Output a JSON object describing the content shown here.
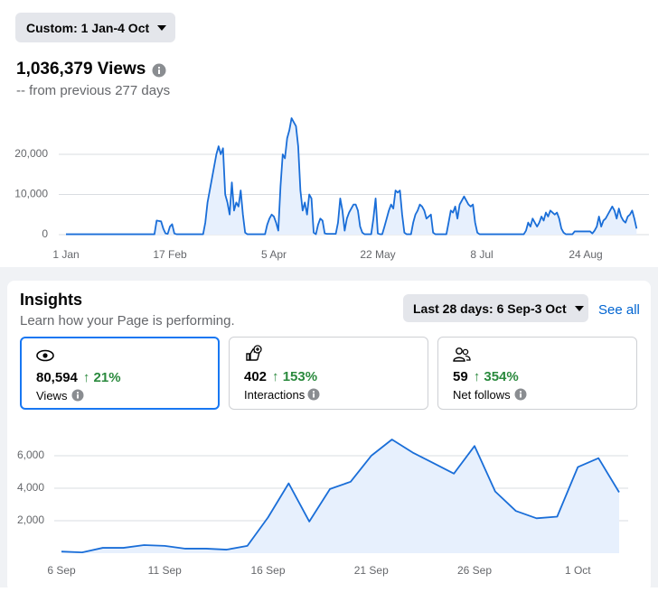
{
  "header": {
    "date_button": "Custom: 1 Jan-4 Oct",
    "total": "1,036,379 Views",
    "comparison": "-- from previous 277 days"
  },
  "insights": {
    "title": "Insights",
    "subtitle": "Learn how your Page is performing.",
    "range_button": "Last 28 days: 6 Sep-3 Oct",
    "see_all": "See all",
    "cards": [
      {
        "value": "80,594",
        "change": "↑ 21%",
        "label": "Views"
      },
      {
        "value": "402",
        "change": "↑ 153%",
        "label": "Interactions"
      },
      {
        "value": "59",
        "change": "↑ 354%",
        "label": "Net follows"
      }
    ]
  },
  "chart_data": [
    {
      "type": "area",
      "color": "#1a6ed8",
      "area_color": "#e7f0fd",
      "grid": true,
      "ylim": [
        0,
        30000
      ],
      "yticks": [
        0,
        {
          "value": 10000,
          "label": "10,000"
        },
        {
          "value": 20000,
          "label": "20,000"
        }
      ],
      "categories": [
        "1 Jan",
        null,
        null,
        null,
        null,
        null,
        null,
        null,
        null,
        null,
        null,
        null,
        null,
        null,
        null,
        null,
        null,
        null,
        null,
        null,
        null,
        null,
        null,
        null,
        null,
        null,
        null,
        null,
        null,
        null,
        null,
        null,
        null,
        null,
        null,
        null,
        null,
        null,
        null,
        null,
        null,
        null,
        null,
        null,
        null,
        null,
        null,
        "17 Feb",
        null,
        null,
        null,
        null,
        null,
        null,
        null,
        null,
        null,
        null,
        null,
        null,
        null,
        null,
        null,
        null,
        null,
        null,
        null,
        null,
        null,
        null,
        null,
        null,
        null,
        null,
        null,
        null,
        null,
        null,
        null,
        null,
        null,
        null,
        null,
        null,
        null,
        null,
        null,
        null,
        null,
        null,
        null,
        null,
        null,
        null,
        "5 Apr",
        null,
        null,
        null,
        null,
        null,
        null,
        null,
        null,
        null,
        null,
        null,
        null,
        null,
        null,
        null,
        null,
        null,
        null,
        null,
        null,
        null,
        null,
        null,
        null,
        null,
        null,
        null,
        null,
        null,
        null,
        null,
        null,
        null,
        null,
        null,
        null,
        null,
        null,
        null,
        null,
        null,
        null,
        null,
        null,
        null,
        null,
        "22 May",
        null,
        null,
        null,
        null,
        null,
        null,
        null,
        null,
        null,
        null,
        null,
        null,
        null,
        null,
        null,
        null,
        null,
        null,
        null,
        null,
        null,
        null,
        null,
        null,
        null,
        null,
        null,
        null,
        null,
        null,
        null,
        null,
        null,
        null,
        null,
        null,
        null,
        null,
        null,
        null,
        null,
        null,
        null,
        null,
        null,
        null,
        "8 Jul",
        null,
        null,
        null,
        null,
        null,
        null,
        null,
        null,
        null,
        null,
        null,
        null,
        null,
        null,
        null,
        null,
        null,
        null,
        null,
        null,
        null,
        null,
        null,
        null,
        null,
        null,
        null,
        null,
        null,
        null,
        null,
        null,
        null,
        null,
        null,
        null,
        null,
        null,
        null,
        null,
        null,
        null,
        null,
        null,
        null,
        null,
        "24 Aug",
        null,
        null,
        null,
        null,
        null,
        null,
        null,
        null,
        null,
        null,
        null,
        null,
        null,
        null,
        null,
        null,
        null,
        null,
        null,
        null,
        null,
        null,
        null
      ],
      "values": [
        100,
        100,
        100,
        100,
        100,
        100,
        100,
        100,
        100,
        100,
        100,
        100,
        100,
        100,
        100,
        100,
        100,
        100,
        100,
        100,
        100,
        100,
        100,
        100,
        100,
        100,
        100,
        100,
        100,
        100,
        100,
        100,
        100,
        100,
        100,
        100,
        100,
        100,
        100,
        100,
        100,
        3500,
        3400,
        3300,
        1500,
        300,
        200,
        2000,
        2600,
        300,
        100,
        100,
        100,
        100,
        100,
        100,
        100,
        100,
        100,
        100,
        100,
        100,
        100,
        3000,
        8000,
        11000,
        14000,
        17000,
        20000,
        22000,
        20000,
        21500,
        10000,
        8000,
        5000,
        13000,
        6000,
        8000,
        7000,
        11000,
        5000,
        500,
        100,
        100,
        100,
        100,
        100,
        100,
        100,
        100,
        100,
        2500,
        4000,
        5000,
        4500,
        3000,
        1000,
        12000,
        20000,
        19000,
        24000,
        26000,
        29000,
        28000,
        27000,
        22000,
        11000,
        6000,
        8000,
        5000,
        10000,
        9000,
        500,
        100,
        2500,
        4000,
        3500,
        300,
        200,
        200,
        200,
        200,
        200,
        3000,
        9000,
        6000,
        1000,
        4000,
        5500,
        6500,
        7500,
        7500,
        6000,
        2000,
        500,
        100,
        100,
        100,
        100,
        4000,
        9000,
        300,
        100,
        100,
        2000,
        4000,
        6000,
        7500,
        6500,
        11000,
        10500,
        11000,
        5000,
        500,
        100,
        100,
        100,
        3000,
        5000,
        6000,
        7500,
        7000,
        6000,
        4000,
        4500,
        5000,
        500,
        100,
        100,
        100,
        100,
        100,
        100,
        3000,
        6000,
        5500,
        7000,
        4000,
        7500,
        8500,
        9500,
        8500,
        7500,
        7000,
        7500,
        3000,
        500,
        100,
        100,
        100,
        100,
        100,
        100,
        100,
        100,
        100,
        100,
        100,
        100,
        100,
        100,
        100,
        100,
        100,
        100,
        100,
        100,
        100,
        1000,
        3000,
        2000,
        4000,
        3000,
        2000,
        3000,
        4500,
        3500,
        5500,
        4500,
        6000,
        5500,
        5000,
        5500,
        4000,
        1500,
        500,
        100,
        100,
        100,
        100,
        800,
        800,
        800,
        800,
        800,
        800,
        800,
        800,
        300,
        1000,
        2000,
        4500,
        2000,
        3500,
        4000,
        5000,
        6000,
        7000,
        6000,
        4000,
        6500,
        4500,
        3500,
        3000,
        4500,
        5000,
        6000,
        4000,
        1500
      ]
    },
    {
      "type": "area",
      "color": "#1a6ed8",
      "area_color": "#e7f0fd",
      "grid": true,
      "ylim": [
        0,
        7500
      ],
      "yticks": [
        {
          "value": 2000,
          "label": "2,000"
        },
        {
          "value": 4000,
          "label": "4,000"
        },
        {
          "value": 6000,
          "label": "6,000"
        }
      ],
      "categories": [
        "6 Sep",
        null,
        null,
        null,
        null,
        "11 Sep",
        null,
        null,
        null,
        null,
        "16 Sep",
        null,
        null,
        null,
        null,
        "21 Sep",
        null,
        null,
        null,
        null,
        "26 Sep",
        null,
        null,
        null,
        null,
        "1 Oct",
        null,
        null
      ],
      "values": [
        100,
        50,
        330,
        330,
        500,
        450,
        280,
        280,
        220,
        450,
        2200,
        4300,
        1950,
        3950,
        4400,
        6000,
        7000,
        6200,
        5550,
        4900,
        6600,
        3800,
        2600,
        2150,
        2250,
        5300,
        5850,
        3750
      ]
    }
  ]
}
